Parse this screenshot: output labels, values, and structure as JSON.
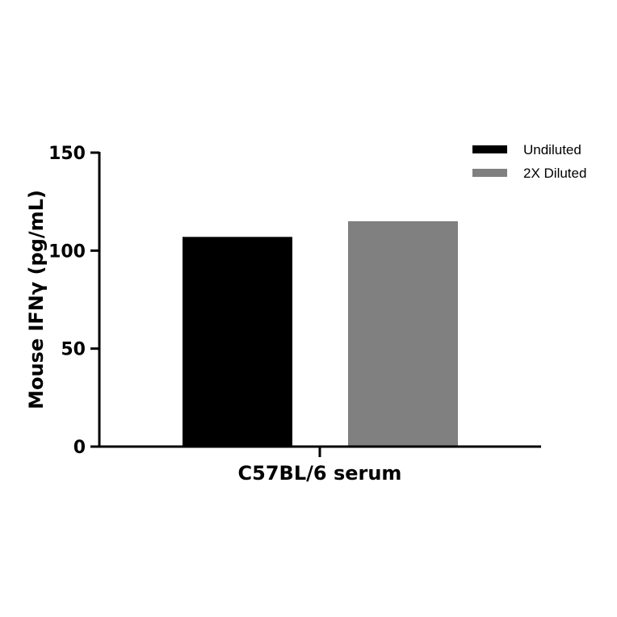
{
  "chart_data": {
    "type": "bar",
    "categories": [
      "C57BL/6 serum"
    ],
    "series": [
      {
        "name": "Undiluted",
        "values": [
          107
        ],
        "color": "#000000"
      },
      {
        "name": "2X Diluted",
        "values": [
          115
        ],
        "color": "#808080"
      }
    ],
    "xlabel": "C57BL/6 serum",
    "ylabel": "Mouse IFNγ (pg/mL)",
    "ylim": [
      0,
      150
    ],
    "yticks": [
      0,
      50,
      100,
      150
    ],
    "yticklabels": [
      "0",
      "50",
      "100",
      "150"
    ],
    "grid": false,
    "legend_position": "top-right"
  }
}
